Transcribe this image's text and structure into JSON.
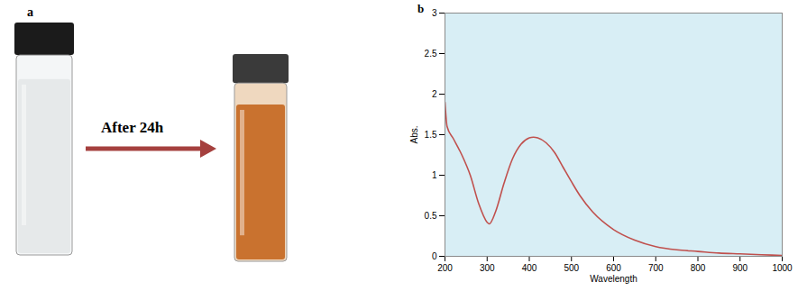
{
  "panel_a": {
    "label": "a",
    "arrow_label": "After 24h"
  },
  "chart_data": {
    "type": "line",
    "title": "b",
    "x_label": "Wavelength",
    "y_label": "Abs.",
    "x": [
      200,
      205,
      220,
      240,
      260,
      280,
      300,
      305,
      320,
      340,
      360,
      380,
      400,
      410,
      420,
      440,
      460,
      480,
      500,
      520,
      550,
      600,
      650,
      700,
      750,
      800,
      850,
      900,
      950,
      1000
    ],
    "values": [
      1.9,
      1.6,
      1.45,
      1.25,
      1.0,
      0.65,
      0.42,
      0.4,
      0.55,
      0.9,
      1.2,
      1.38,
      1.46,
      1.47,
      1.46,
      1.4,
      1.28,
      1.1,
      0.92,
      0.75,
      0.55,
      0.33,
      0.2,
      0.12,
      0.08,
      0.06,
      0.04,
      0.03,
      0.02,
      0.01
    ],
    "color": "#c0504d",
    "xlim": [
      200,
      1000
    ],
    "xticks": [
      200,
      300,
      400,
      500,
      600,
      700,
      800,
      900,
      1000
    ],
    "ylim": [
      0,
      3
    ],
    "yticks": [
      0,
      0.5,
      1,
      1.5,
      2,
      2.5,
      3
    ],
    "grid": false
  }
}
